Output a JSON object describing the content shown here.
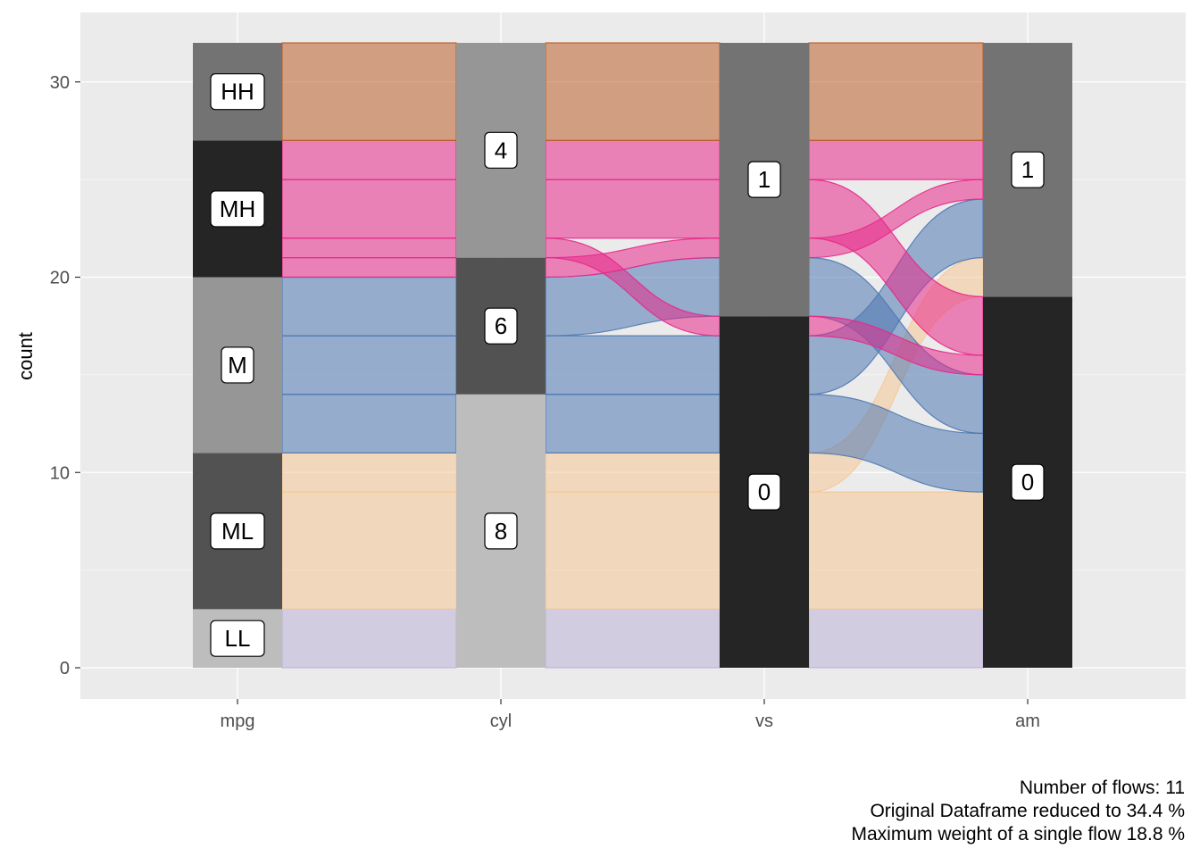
{
  "chart_data": {
    "type": "alluvial",
    "xlabel": "",
    "ylabel": "count",
    "ylim": [
      0,
      32
    ],
    "yticks": [
      "0",
      "10",
      "20",
      "30"
    ],
    "axes": [
      "mpg",
      "cyl",
      "vs",
      "am"
    ],
    "strata": {
      "mpg": [
        {
          "label": "LL",
          "bottom": 0,
          "top": 3,
          "color": "#bdbdbd"
        },
        {
          "label": "ML",
          "bottom": 3,
          "top": 11,
          "color": "#525252"
        },
        {
          "label": "M",
          "bottom": 11,
          "top": 20,
          "color": "#969696"
        },
        {
          "label": "MH",
          "bottom": 20,
          "top": 27,
          "color": "#252525"
        },
        {
          "label": "HH",
          "bottom": 27,
          "top": 32,
          "color": "#737373"
        }
      ],
      "cyl": [
        {
          "label": "8",
          "bottom": 0,
          "top": 14,
          "color": "#bdbdbd"
        },
        {
          "label": "6",
          "bottom": 14,
          "top": 21,
          "color": "#525252"
        },
        {
          "label": "4",
          "bottom": 21,
          "top": 32,
          "color": "#969696"
        }
      ],
      "vs": [
        {
          "label": "0",
          "bottom": 0,
          "top": 18,
          "color": "#252525"
        },
        {
          "label": "1",
          "bottom": 18,
          "top": 32,
          "color": "#737373"
        }
      ],
      "am": [
        {
          "label": "0",
          "bottom": 0,
          "top": 19,
          "color": "#252525"
        },
        {
          "label": "1",
          "bottom": 19,
          "top": 32,
          "color": "#737373"
        }
      ]
    },
    "flow_colors": {
      "LL": "#bcb3d6",
      "ML": "#f6c896",
      "M": "#4f79b3",
      "MH": "#e7298a",
      "HH": "#bb5e2a"
    },
    "flows": [
      {
        "group": "LL",
        "count": 3,
        "segments": [
          [
            0,
            3,
            0,
            3
          ],
          [
            0,
            3,
            0,
            3
          ],
          [
            0,
            3,
            0,
            3
          ]
        ]
      },
      {
        "group": "ML",
        "count": 6,
        "segments": [
          [
            3,
            9,
            3,
            9
          ],
          [
            3,
            9,
            3,
            9
          ],
          [
            3,
            9,
            3,
            9
          ]
        ]
      },
      {
        "group": "ML",
        "count": 2,
        "segments": [
          [
            9,
            11,
            9,
            11
          ],
          [
            9,
            11,
            9,
            11
          ],
          [
            9,
            11,
            19,
            21
          ]
        ]
      },
      {
        "group": "M",
        "count": 3,
        "segments": [
          [
            11,
            14,
            11,
            14
          ],
          [
            11,
            14,
            11,
            14
          ],
          [
            11,
            14,
            9,
            12
          ]
        ]
      },
      {
        "group": "M",
        "count": 3,
        "segments": [
          [
            14,
            17,
            14,
            17
          ],
          [
            14,
            17,
            14,
            17
          ],
          [
            14,
            17,
            21,
            24
          ]
        ]
      },
      {
        "group": "M",
        "count": 3,
        "segments": [
          [
            17,
            20,
            17,
            20
          ],
          [
            17,
            20,
            18,
            21
          ],
          [
            18,
            21,
            12,
            15
          ]
        ]
      },
      {
        "group": "MH",
        "count": 1,
        "segments": [
          [
            20,
            21,
            20,
            21
          ],
          [
            20,
            21,
            21,
            22
          ],
          [
            21,
            22,
            24,
            25
          ]
        ]
      },
      {
        "group": "MH",
        "count": 1,
        "segments": [
          [
            21,
            22,
            21,
            22
          ],
          [
            21,
            22,
            17,
            18
          ],
          [
            17,
            18,
            15,
            16
          ]
        ]
      },
      {
        "group": "MH",
        "count": 3,
        "segments": [
          [
            22,
            25,
            22,
            25
          ],
          [
            22,
            25,
            22,
            25
          ],
          [
            22,
            25,
            16,
            19
          ]
        ]
      },
      {
        "group": "MH",
        "count": 2,
        "segments": [
          [
            25,
            27,
            25,
            27
          ],
          [
            25,
            27,
            25,
            27
          ],
          [
            25,
            27,
            25,
            27
          ]
        ]
      },
      {
        "group": "HH",
        "count": 5,
        "segments": [
          [
            27,
            32,
            27,
            32
          ],
          [
            27,
            32,
            27,
            32
          ],
          [
            27,
            32,
            27,
            32
          ]
        ]
      }
    ]
  },
  "caption": {
    "line1": "Number of flows: 11",
    "line2": "Original Dataframe reduced to 34.4 %",
    "line3": "Maximum weight of a single flow 18.8 %"
  }
}
